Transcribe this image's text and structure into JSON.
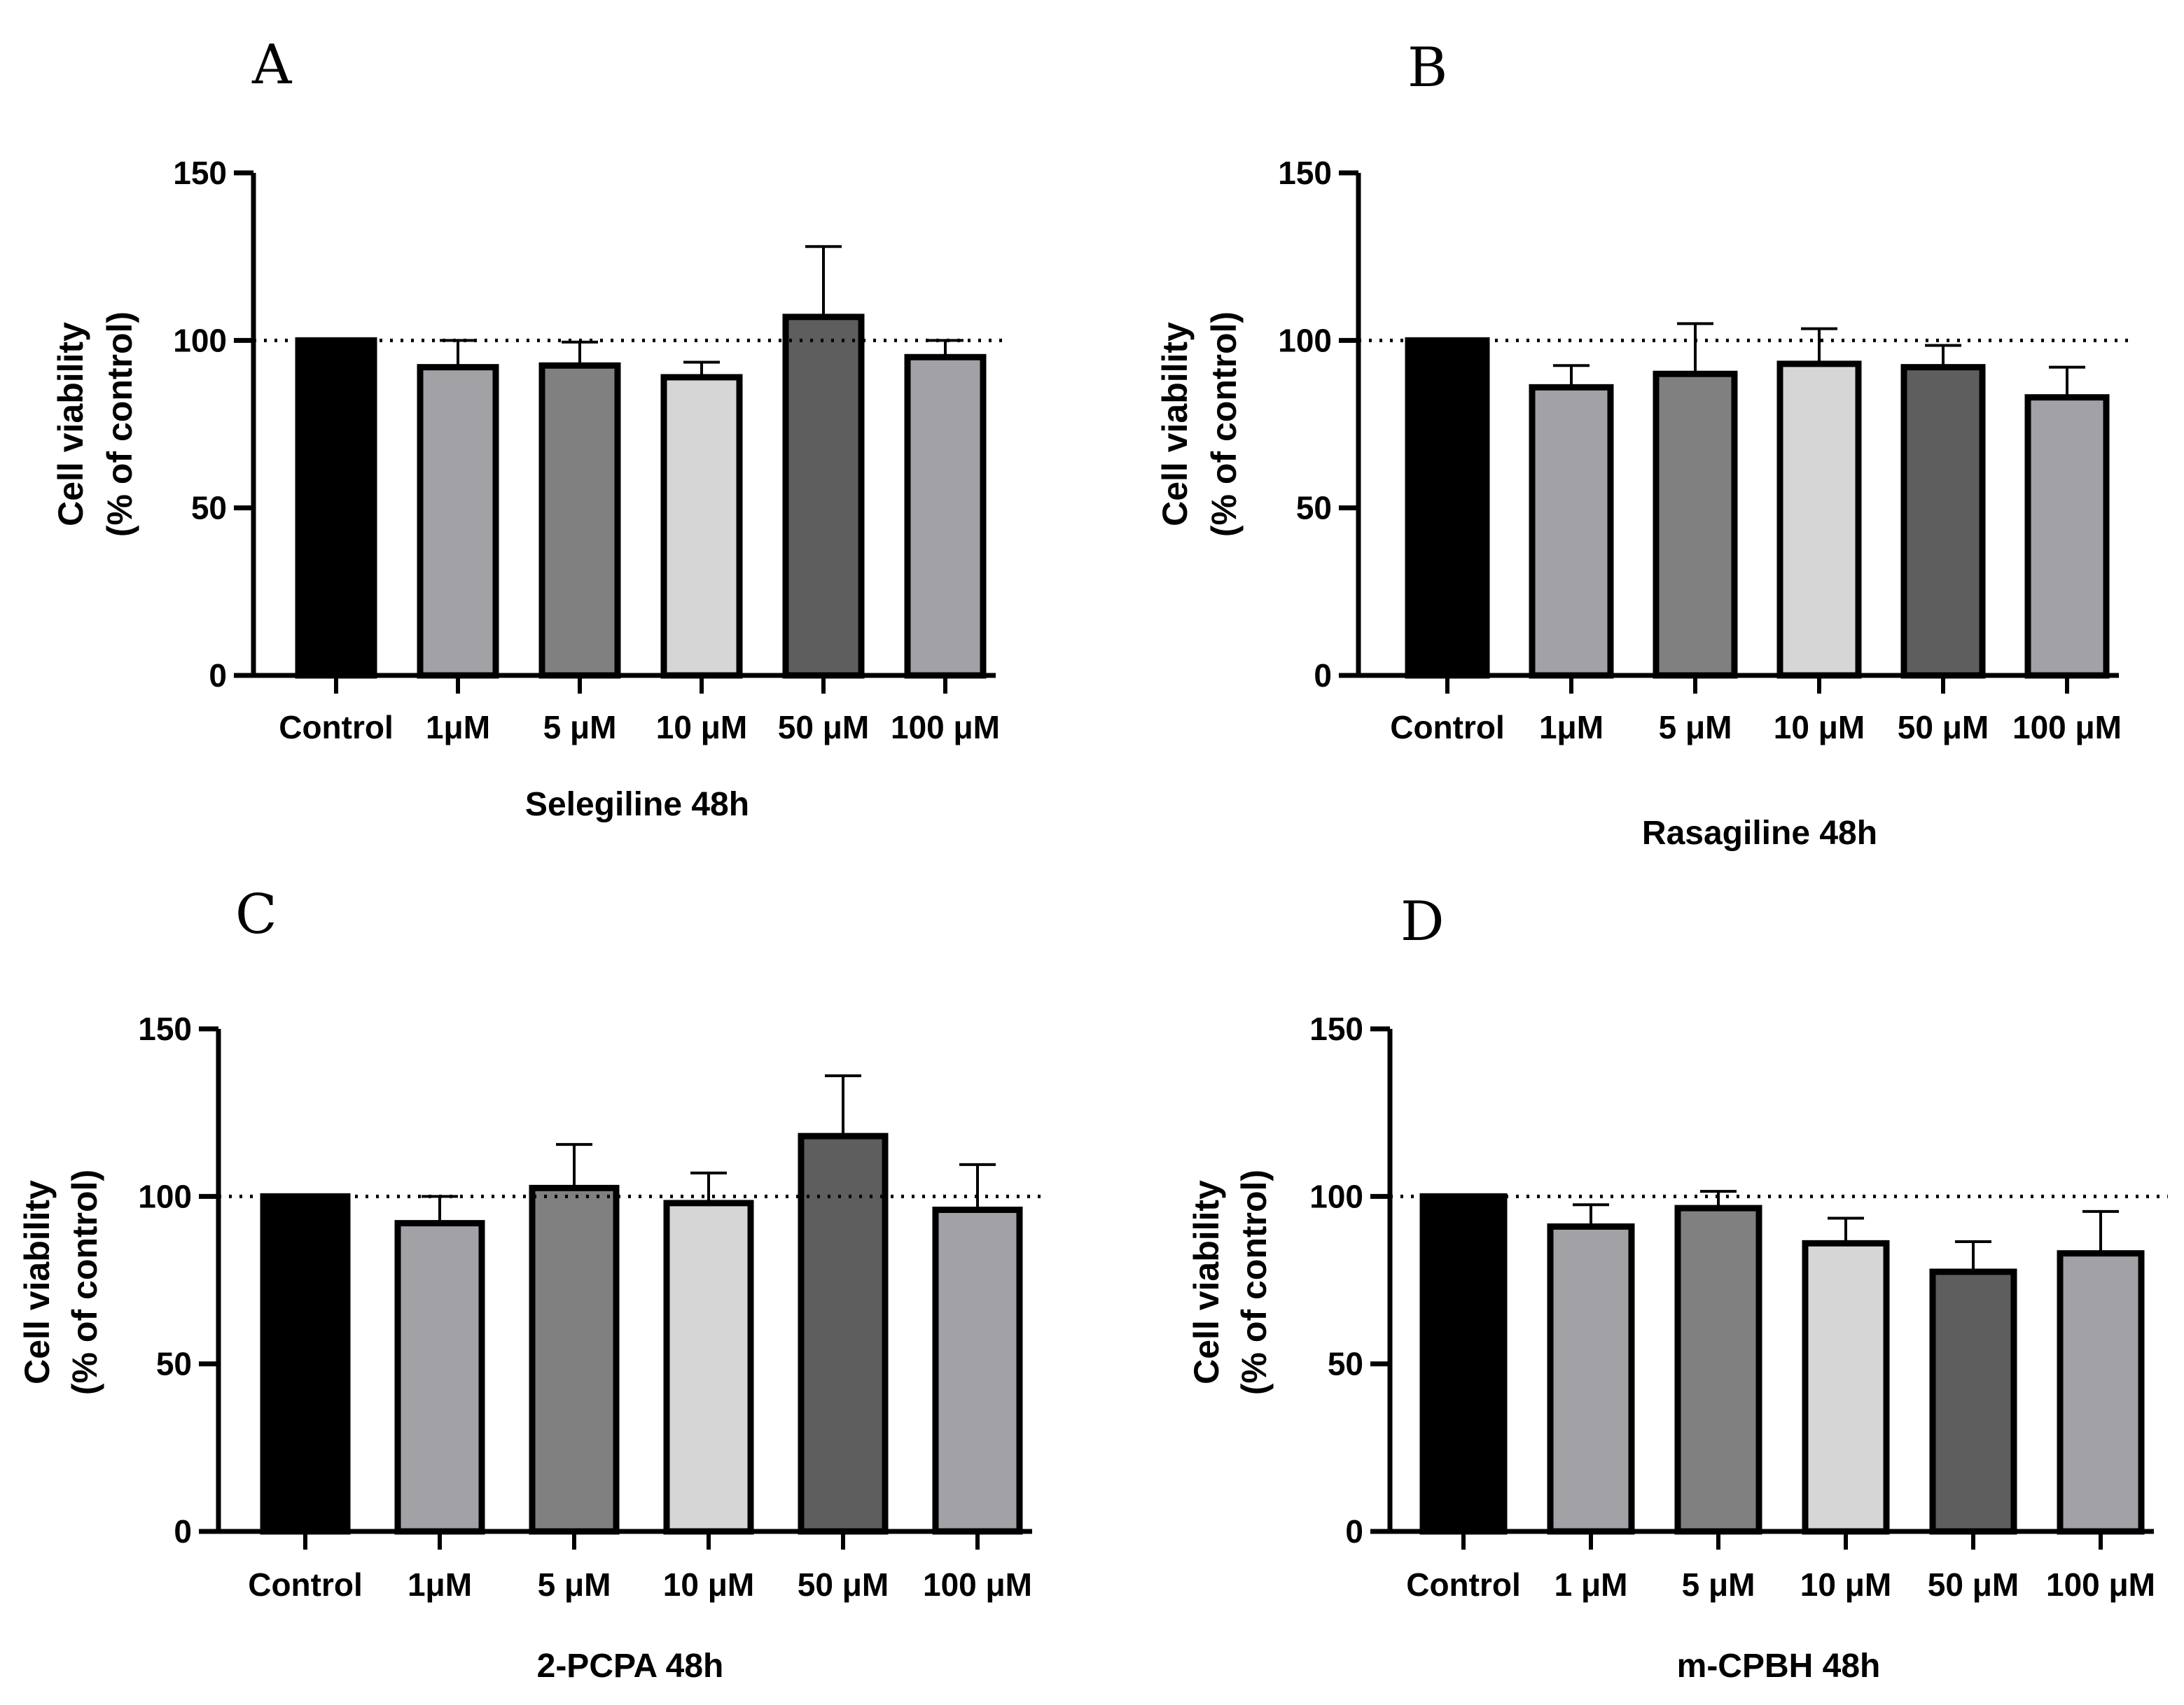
{
  "panels": [
    {
      "letter": "A"
    },
    {
      "letter": "B"
    },
    {
      "letter": "C"
    },
    {
      "letter": "D"
    }
  ],
  "colors": {
    "axis": "#000000",
    "bar_outline": "#000000",
    "control": "#000000",
    "1uM": "#a1a1a6",
    "5uM": "#808080",
    "10uM": "#d6d6d6",
    "50uM": "#5e5e5e",
    "100uM": "#a1a1a6"
  },
  "chart_data": [
    {
      "type": "bar",
      "panel": "A",
      "categories": [
        "Control",
        "1μM",
        "5 μM",
        "10 μM",
        "50 μM",
        "100 μM"
      ],
      "values": [
        100,
        92,
        92.5,
        89,
        107,
        95
      ],
      "errors": [
        0,
        8,
        7,
        4.5,
        21,
        5
      ],
      "xlabel": "Selegiline 48h",
      "ylabel_line1": "Cell viability",
      "ylabel_line2": "(% of control)",
      "ylim": [
        0,
        150
      ],
      "yticks": [
        "0",
        "50",
        "100",
        "150"
      ],
      "reference_line": 100
    },
    {
      "type": "bar",
      "panel": "B",
      "categories": [
        "Control",
        "1μM",
        "5 μM",
        "10 μM",
        "50 μM",
        "100 μM"
      ],
      "values": [
        100,
        86,
        90,
        93,
        92,
        83
      ],
      "errors": [
        0,
        6.5,
        15,
        10.5,
        6.5,
        9
      ],
      "xlabel": "Rasagiline 48h",
      "ylabel_line1": "Cell viability",
      "ylabel_line2": "(% of control)",
      "ylim": [
        0,
        150
      ],
      "yticks": [
        "0",
        "50",
        "100",
        "150"
      ],
      "reference_line": 100
    },
    {
      "type": "bar",
      "panel": "C",
      "categories": [
        "Control",
        "1μM",
        "5 μM",
        "10 μM",
        "50 μM",
        "100 μM"
      ],
      "values": [
        100,
        92,
        102.5,
        98,
        118,
        96
      ],
      "errors": [
        0,
        8,
        13,
        9,
        18,
        13.5
      ],
      "xlabel": "2-PCPA 48h",
      "ylabel_line1": "Cell viability",
      "ylabel_line2": "(% of control)",
      "ylim": [
        0,
        150
      ],
      "yticks": [
        "0",
        "50",
        "100",
        "150"
      ],
      "reference_line": 100
    },
    {
      "type": "bar",
      "panel": "D",
      "categories": [
        "Control",
        "1 μM",
        "5 μM",
        "10 μM",
        "50 μM",
        "100 μM"
      ],
      "values": [
        100,
        91,
        96.5,
        86,
        77.5,
        83
      ],
      "errors": [
        0,
        6.5,
        5,
        7.5,
        9,
        12.5
      ],
      "xlabel": "m-CPBH 48h",
      "ylabel_line1": "Cell viability",
      "ylabel_line2": "(% of control)",
      "ylim": [
        0,
        150
      ],
      "yticks": [
        "0",
        "50",
        "100",
        "150"
      ],
      "reference_line": 100
    }
  ]
}
